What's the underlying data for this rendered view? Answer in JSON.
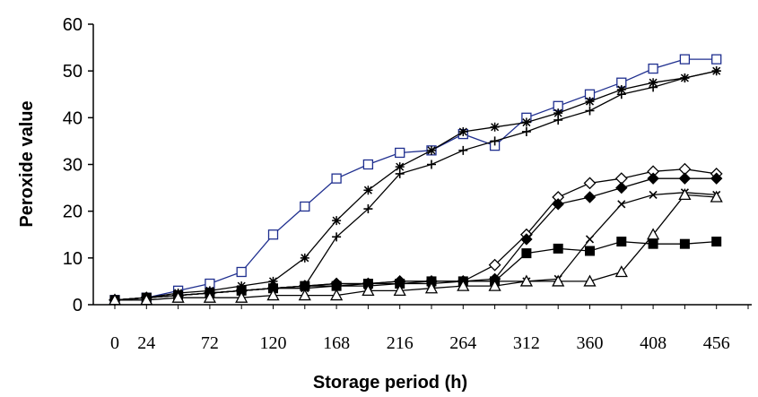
{
  "chart_data": {
    "type": "line",
    "title": "",
    "xlabel": "Storage period (h)",
    "ylabel": "Peroxide value",
    "ylim": [
      0,
      60
    ],
    "yticks": [
      "0",
      "10",
      "20",
      "30",
      "40",
      "50",
      "60"
    ],
    "xticks": [
      "0",
      "24",
      "72",
      "120",
      "168",
      "216",
      "264",
      "312",
      "360",
      "408",
      "456"
    ],
    "x": [
      0,
      24,
      48,
      72,
      96,
      120,
      144,
      168,
      192,
      216,
      240,
      264,
      288,
      312,
      336,
      360,
      384,
      408,
      432,
      456,
      480
    ],
    "grid": false,
    "legend": "none",
    "series": [
      {
        "marker": "open-square",
        "color": "#1f2f8f",
        "values": [
          1,
          1.5,
          3,
          4.5,
          7,
          15,
          21,
          27,
          30,
          32.5,
          33,
          36.5,
          34,
          40,
          42.5,
          45,
          47.5,
          50.5,
          52.5,
          52.5,
          null
        ]
      },
      {
        "marker": "star",
        "color": "#000000",
        "values": [
          1,
          1.5,
          2.5,
          3,
          4,
          5,
          10,
          18,
          24.5,
          29.5,
          33,
          37,
          38,
          39,
          41,
          43.5,
          46,
          47.5,
          48.5,
          50,
          null
        ]
      },
      {
        "marker": "plus",
        "color": "#000000",
        "values": [
          1,
          1.5,
          2,
          2.5,
          3,
          3.5,
          4,
          14.5,
          20.5,
          28,
          30,
          33,
          35,
          37,
          39.5,
          41.5,
          45,
          46.5,
          48.5,
          50,
          null
        ]
      },
      {
        "marker": "open-diamond",
        "color": "#000000",
        "values": [
          1,
          1.5,
          2,
          2.5,
          3,
          3.5,
          4,
          4.5,
          4.5,
          5,
          5,
          5,
          8.5,
          15,
          23,
          26,
          27,
          28.5,
          29,
          28,
          null
        ]
      },
      {
        "marker": "filled-diamond",
        "color": "#000000",
        "values": [
          1,
          1.5,
          2,
          2.5,
          3,
          3.5,
          4,
          4.5,
          4.5,
          5,
          5,
          5,
          5.5,
          14,
          21.5,
          23,
          25,
          27,
          27,
          27,
          null
        ]
      },
      {
        "marker": "filled-square",
        "color": "#000000",
        "values": [
          1,
          1.5,
          2,
          2.5,
          3,
          3.5,
          4,
          4,
          4.5,
          4.5,
          5,
          5,
          5,
          11,
          12,
          11.5,
          13.5,
          13,
          13,
          13.5,
          null
        ]
      },
      {
        "marker": "x",
        "color": "#000000",
        "values": [
          1,
          1.5,
          2,
          2.5,
          3,
          3.5,
          3.5,
          4,
          4,
          4.5,
          4.5,
          5,
          5,
          5,
          5.5,
          14,
          21.5,
          23.5,
          24,
          23.5,
          null
        ]
      },
      {
        "marker": "open-triangle",
        "color": "#000000",
        "values": [
          1,
          1,
          1.5,
          1.5,
          1.5,
          2,
          2,
          2,
          3,
          3,
          3.5,
          4,
          4,
          5,
          5,
          5,
          7,
          15,
          23.5,
          23,
          null
        ]
      }
    ]
  }
}
